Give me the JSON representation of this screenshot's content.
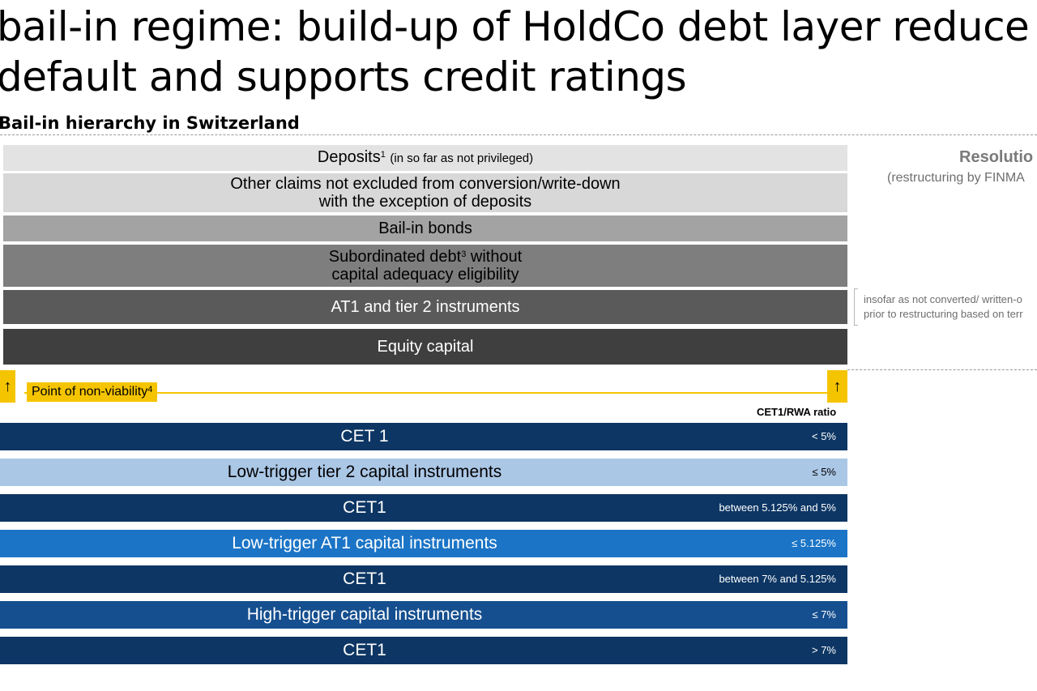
{
  "title": {
    "line1": "bail-in regime: build-up of HoldCo debt layer reduce",
    "line2": "default and supports credit ratings"
  },
  "subtitle": "Bail-in hierarchy in Switzerland",
  "resolution": {
    "heading": "Resolutio",
    "sub": "(restructuring by FINMA"
  },
  "note": {
    "line1": "insofar as not converted/ written-o",
    "line2": "prior to restructuring based on terr"
  },
  "hierarchy": [
    {
      "main": "Deposits",
      "sup": "1",
      "suffix": "(in so far as not privileged)",
      "color": "#e3e3e3",
      "text_color": "#000000"
    },
    {
      "line1": "Other claims not excluded from conversion/write-down",
      "line2": "with the exception of deposits",
      "color": "#d8d8d8",
      "text_color": "#000000"
    },
    {
      "main": "Bail-in bonds",
      "color": "#a3a3a3",
      "text_color": "#000000"
    },
    {
      "line1_pre": "Subordinated debt",
      "line1_sup": "3",
      "line1_post": " without",
      "line2": "capital adequacy eligibility",
      "color": "#7e7e7e",
      "text_color": "#000000"
    },
    {
      "main": "AT1 and tier 2 instruments",
      "color": "#5a5a5a",
      "text_color": "#ffffff"
    },
    {
      "main": "Equity capital",
      "color": "#3f3f3f",
      "text_color": "#ffffff"
    }
  ],
  "pnv": {
    "label": "Point of non-viability",
    "sup": "4",
    "color": "#f5c400",
    "arrow": "↑"
  },
  "ratio_header": "CET1/RWA ratio",
  "triggers": [
    {
      "label": "CET 1",
      "ratio": "< 5%",
      "color": "#0d3664",
      "text_color": "#ffffff"
    },
    {
      "label": "Low-trigger tier 2 capital instruments",
      "ratio": "≤ 5%",
      "color": "#abc7e6",
      "text_color": "#000000"
    },
    {
      "label": "CET1",
      "ratio": "between 5.125% and 5%",
      "color": "#0d3664",
      "text_color": "#ffffff"
    },
    {
      "label": "Low-trigger AT1 capital instruments",
      "ratio": "≤ 5.125%",
      "color": "#1b74c6",
      "text_color": "#ffffff"
    },
    {
      "label": "CET1",
      "ratio": "between 7% and 5.125%",
      "color": "#0d3664",
      "text_color": "#ffffff"
    },
    {
      "label": "High-trigger capital instruments",
      "ratio": "≤ 7%",
      "color": "#154f8f",
      "text_color": "#ffffff"
    },
    {
      "label": "CET1",
      "ratio": "> 7%",
      "color": "#0d3664",
      "text_color": "#ffffff"
    }
  ]
}
